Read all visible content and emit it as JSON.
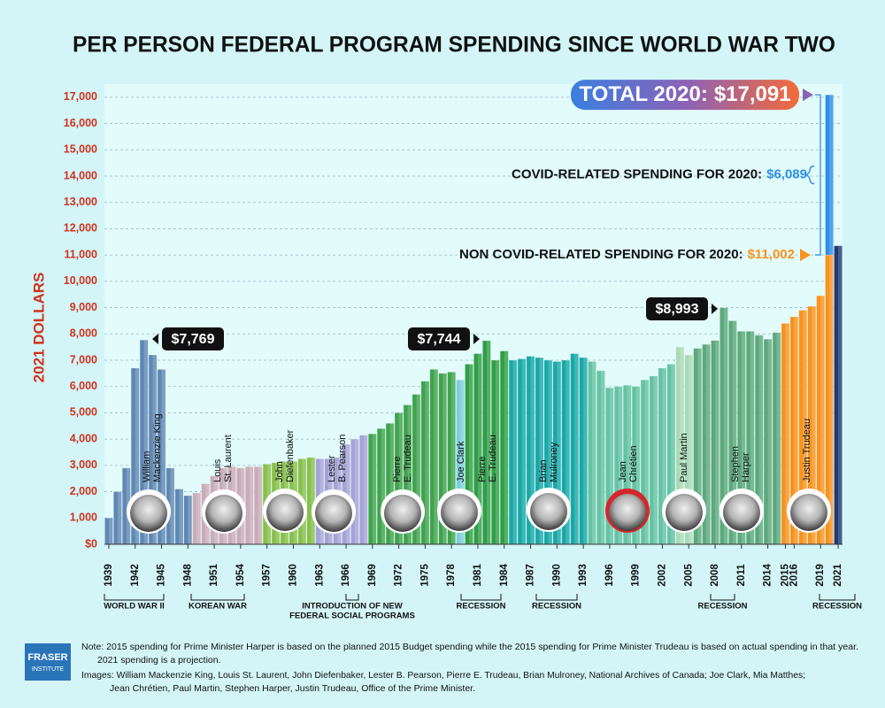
{
  "chart_data": {
    "type": "bar",
    "stacked": true,
    "title": "PER PERSON FEDERAL PROGRAM SPENDING SINCE WORLD WAR TWO",
    "y_label": "2021 DOLLARS",
    "categories": [
      "1939",
      null,
      null,
      "1942",
      null,
      null,
      "1945",
      null,
      null,
      "1948",
      null,
      null,
      "1951",
      null,
      null,
      "1954",
      null,
      null,
      "1957",
      null,
      null,
      "1960",
      null,
      null,
      "1963",
      null,
      null,
      "1966",
      null,
      null,
      "1969",
      null,
      null,
      "1972",
      null,
      null,
      "1975",
      null,
      null,
      "1978",
      null,
      null,
      "1981",
      null,
      null,
      "1984",
      null,
      null,
      "1987",
      null,
      null,
      "1990",
      null,
      null,
      "1993",
      null,
      null,
      "1996",
      null,
      null,
      "1999",
      null,
      null,
      "2002",
      null,
      null,
      "2005",
      null,
      null,
      "2008",
      null,
      null,
      "2011",
      null,
      null,
      "2014",
      null,
      "2015",
      "2016",
      null,
      null,
      "2019",
      null,
      "2021"
    ],
    "series": [
      {
        "colors": [
          "#5e88b3",
          "#5e88b3",
          "#5e88b3",
          "#5e88b3",
          "#5e88b3",
          "#5e88b3",
          "#5e88b3",
          "#5e88b3",
          "#5e88b3",
          "#5e88b3",
          "#c8adb8",
          "#c8adb8",
          "#c8adb8",
          "#c8adb8",
          "#c8adb8",
          "#c8adb8",
          "#c8adb8",
          "#c8adb8",
          "#86c04a",
          "#86c04a",
          "#86c04a",
          "#86c04a",
          "#86c04a",
          "#86c04a",
          "#a3a3d6",
          "#a3a3d6",
          "#a3a3d6",
          "#a3a3d6",
          "#a3a3d6",
          "#a3a3d6",
          "#3fa34d",
          "#3fa34d",
          "#3fa34d",
          "#3fa34d",
          "#3fa34d",
          "#3fa34d",
          "#3fa34d",
          "#3fa34d",
          "#3fa34d",
          "#3fa34d",
          "#7ccfd8",
          "#2f9e46",
          "#2f9e46",
          "#2f9e46",
          "#2f9e46",
          "#2f9e46",
          "#18a8a8",
          "#18a8a8",
          "#18a8a8",
          "#18a8a8",
          "#18a8a8",
          "#18a8a8",
          "#18a8a8",
          "#18a8a8",
          "#18a8a8",
          "#63c3a3",
          "#63c3a3",
          "#63c3a3",
          "#63c3a3",
          "#63c3a3",
          "#63c3a3",
          "#63c3a3",
          "#63c3a3",
          "#63c3a3",
          "#63c3a3",
          "#a9dbb6",
          "#a9dbb6",
          "#5ba97c",
          "#5ba97c",
          "#5ba97c",
          "#5ba97c",
          "#5ba97c",
          "#5ba97c",
          "#5ba97c",
          "#5ba97c",
          "#5ba97c",
          "#5ba97c",
          "#f7931e",
          "#f7931e",
          "#f7931e",
          "#f7931e",
          "#f7931e",
          "#f7931e",
          "#1f3b73"
        ],
        "values": [
          1000,
          2000,
          2900,
          6700,
          7769,
          7200,
          6650,
          2900,
          2100,
          1850,
          1950,
          2300,
          2600,
          2900,
          2950,
          2900,
          2950,
          2950,
          3050,
          3100,
          3150,
          3150,
          3250,
          3300,
          3250,
          3250,
          3300,
          3800,
          4000,
          4150,
          4200,
          4400,
          4600,
          5000,
          5300,
          5700,
          6200,
          6650,
          6500,
          6550,
          6250,
          6850,
          7250,
          7744,
          7000,
          7350,
          7000,
          7050,
          7150,
          7100,
          7000,
          6950,
          7000,
          7250,
          7100,
          6950,
          6600,
          5950,
          6000,
          6050,
          6000,
          6250,
          6400,
          6700,
          6850,
          7500,
          7200,
          7450,
          7600,
          7750,
          8993,
          8500,
          8100,
          8100,
          7950,
          7800,
          8050,
          8400,
          8650,
          8900,
          9050,
          9450,
          11002,
          11350
        ],
        "value_labels": [
          null,
          null,
          null,
          null,
          "$7,769",
          null,
          null,
          null,
          null,
          null,
          null,
          null,
          null,
          null,
          null,
          null,
          null,
          null,
          null,
          null,
          null,
          null,
          null,
          null,
          null,
          null,
          null,
          null,
          null,
          null,
          null,
          null,
          null,
          null,
          null,
          null,
          null,
          null,
          null,
          null,
          null,
          null,
          null,
          "$7,744",
          null,
          null,
          null,
          null,
          null,
          null,
          null,
          null,
          null,
          null,
          null,
          null,
          null,
          null,
          null,
          null,
          null,
          null,
          null,
          null,
          null,
          null,
          null,
          null,
          null,
          null,
          "$8,993",
          null,
          null,
          null,
          null,
          null,
          null,
          null,
          null,
          null,
          null,
          null,
          "$11,002",
          null
        ]
      },
      {
        "color": "#2e8fe6",
        "values": [
          null,
          null,
          null,
          null,
          null,
          null,
          null,
          null,
          null,
          null,
          null,
          null,
          null,
          null,
          null,
          null,
          null,
          null,
          null,
          null,
          null,
          null,
          null,
          null,
          null,
          null,
          null,
          null,
          null,
          null,
          null,
          null,
          null,
          null,
          null,
          null,
          null,
          null,
          null,
          null,
          null,
          null,
          null,
          null,
          null,
          null,
          null,
          null,
          null,
          null,
          null,
          null,
          null,
          null,
          null,
          null,
          null,
          null,
          null,
          null,
          null,
          null,
          null,
          null,
          null,
          null,
          null,
          null,
          null,
          null,
          null,
          null,
          null,
          null,
          null,
          null,
          null,
          null,
          null,
          null,
          null,
          null,
          6089,
          null
        ],
        "value_labels": [
          null,
          null,
          null,
          null,
          null,
          null,
          null,
          null,
          null,
          null,
          null,
          null,
          null,
          null,
          null,
          null,
          null,
          null,
          null,
          null,
          null,
          null,
          null,
          null,
          null,
          null,
          null,
          null,
          null,
          null,
          null,
          null,
          null,
          null,
          null,
          null,
          null,
          null,
          null,
          null,
          null,
          null,
          null,
          null,
          null,
          null,
          null,
          null,
          null,
          null,
          null,
          null,
          null,
          null,
          null,
          null,
          null,
          null,
          null,
          null,
          null,
          null,
          null,
          null,
          null,
          null,
          null,
          null,
          null,
          null,
          null,
          null,
          null,
          null,
          null,
          null,
          null,
          null,
          null,
          null,
          null,
          null,
          "$6,089",
          null
        ]
      }
    ],
    "ylim": [
      0,
      17500
    ],
    "yticks": [
      {
        "value": 0,
        "label": "$0"
      },
      {
        "value": 1000,
        "label": "1,000"
      },
      {
        "value": 2000,
        "label": "2,000"
      },
      {
        "value": 3000,
        "label": "3,000"
      },
      {
        "value": 4000,
        "label": "4,000"
      },
      {
        "value": 5000,
        "label": "5,000"
      },
      {
        "value": 6000,
        "label": "6,000"
      },
      {
        "value": 7000,
        "label": "7,000"
      },
      {
        "value": 8000,
        "label": "8,000"
      },
      {
        "value": 9000,
        "label": "9,000"
      },
      {
        "value": 10000,
        "label": "10,000"
      },
      {
        "value": 11000,
        "label": "11,000"
      },
      {
        "value": 12000,
        "label": "12,000"
      },
      {
        "value": 13000,
        "label": "13,000"
      },
      {
        "value": 14000,
        "label": "14,000"
      },
      {
        "value": 15000,
        "label": "15,000"
      },
      {
        "value": 16000,
        "label": "16,000"
      },
      {
        "value": 17000,
        "label": "17,000"
      }
    ],
    "grid": true,
    "annotations": [
      {
        "text": "TOTAL 2020:",
        "label": "$17,091",
        "value": 17091
      },
      {
        "text": "COVID-RELATED SPENDING FOR 2020:"
      },
      {
        "text": "NON COVID-RELATED SPENDING FOR 2020:"
      }
    ],
    "leaders": [
      {
        "lines": [
          "William",
          "Mackenzie King"
        ]
      },
      {
        "lines": [
          "Louis",
          "St. Laurent"
        ]
      },
      {
        "lines": [
          "John",
          "Diefenbaker"
        ]
      },
      {
        "lines": [
          "Lester",
          "B. Pearson"
        ]
      },
      {
        "lines": [
          "Pierre",
          "E. Trudeau"
        ]
      },
      {
        "lines": [
          "Joe Clark"
        ]
      },
      {
        "lines": [
          "Pierre",
          "E. Trudeau"
        ]
      },
      {
        "lines": [
          "Brian",
          "Mulroney"
        ]
      },
      {
        "lines": [
          "Jean",
          "Chrétien"
        ]
      },
      {
        "lines": [
          "Paul Martin"
        ]
      },
      {
        "lines": [
          "Stephen",
          "Harper"
        ]
      },
      {
        "lines": [
          "Justin Trudeau"
        ]
      }
    ],
    "events": [
      {
        "lines": [
          "WORLD WAR II"
        ]
      },
      {
        "lines": [
          "KOREAN WAR"
        ]
      },
      {
        "lines": [
          "INTRODUCTION OF NEW",
          "FEDERAL SOCIAL PROGRAMS"
        ]
      },
      {
        "lines": [
          "RECESSION"
        ]
      },
      {
        "lines": [
          "RECESSION"
        ]
      },
      {
        "lines": [
          "RECESSION"
        ]
      },
      {
        "lines": [
          "RECESSION"
        ]
      }
    ]
  },
  "notes": [
    "Note: 2015 spending for Prime Minister Harper is based on the planned 2015 Budget spending while the 2015 spending for Prime Minister Trudeau is based on actual spending in that year.",
    "2021 spending is a projection.",
    "Images: William Mackenzie King, Louis St. Laurent, John Diefenbaker, Lester B. Pearson, Pierre E. Trudeau, Brian Mulroney, National Archives of Canada; Joe Clark, Mia Matthes;",
    "Jean Chrétien, Paul Martin, Stephen Harper, Justin Trudeau, Office of the Prime Minister."
  ],
  "logo": [
    "FRASER",
    "INSTITUTE"
  ]
}
